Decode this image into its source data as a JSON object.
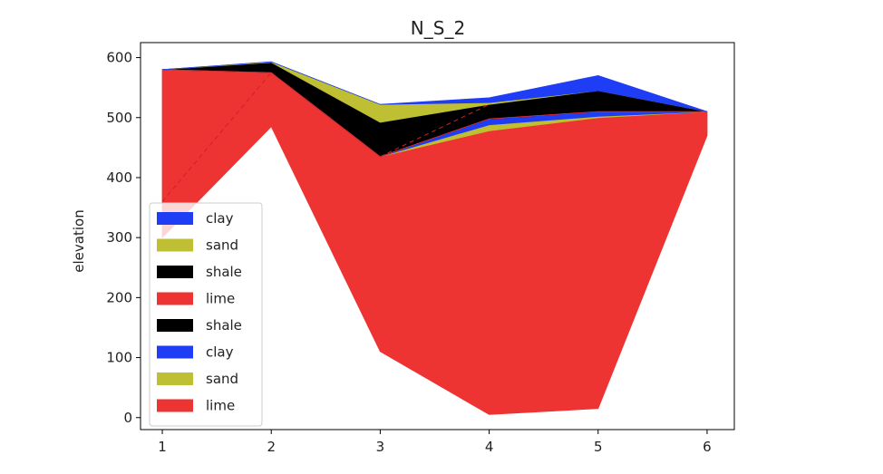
{
  "chart_data": {
    "type": "area",
    "title": "N_S_2",
    "xlabel": "",
    "ylabel": "elevation",
    "x": [
      1,
      2,
      3,
      4,
      5,
      6
    ],
    "xlim": [
      0.8,
      6.25
    ],
    "ylim": [
      -20,
      625
    ],
    "yticks": [
      0,
      100,
      200,
      300,
      400,
      500,
      600
    ],
    "xticks": [
      1,
      2,
      3,
      4,
      5,
      6
    ],
    "grid": false,
    "legend_position": "lower-left",
    "layers": [
      {
        "name": "lime",
        "color": "#ee3333",
        "bottom": [
          300,
          485,
          110,
          5,
          15,
          470
        ],
        "top": [
          580,
          575,
          435,
          478,
          500,
          510
        ]
      },
      {
        "name": "sand",
        "color": "#bfbf33",
        "bottom": [
          580,
          575,
          435,
          478,
          500,
          510
        ],
        "top": [
          580,
          575,
          435,
          488,
          502,
          510
        ]
      },
      {
        "name": "clay",
        "color": "#1f3df5",
        "bottom": [
          580,
          575,
          435,
          488,
          502,
          510
        ],
        "top": [
          580,
          575,
          435,
          498,
          510,
          510
        ]
      },
      {
        "name": "shale",
        "color": "#000000",
        "bottom": [
          580,
          575,
          435,
          498,
          510,
          510
        ],
        "top": [
          580,
          590,
          492,
          522,
          545,
          510
        ]
      },
      {
        "name": "lime",
        "color": "#ee3333",
        "bottom": [
          580,
          575,
          435,
          498,
          510,
          510
        ],
        "top": [
          580,
          575,
          435,
          498,
          510,
          510
        ]
      },
      {
        "name": "shale",
        "color": "#000000",
        "bottom": [
          580,
          590,
          492,
          522,
          545,
          510
        ],
        "top": [
          580,
          592,
          492,
          522,
          545,
          510
        ]
      },
      {
        "name": "sand",
        "color": "#bfbf33",
        "bottom": [
          580,
          592,
          492,
          522,
          545,
          510
        ],
        "top": [
          580,
          593,
          522,
          525,
          545,
          510
        ]
      },
      {
        "name": "clay",
        "color": "#1f3df5",
        "bottom": [
          580,
          593,
          522,
          525,
          545,
          510
        ],
        "top": [
          580,
          593,
          522,
          533,
          570,
          510
        ]
      }
    ],
    "legend": [
      {
        "label": "clay",
        "color": "#1f3df5"
      },
      {
        "label": "sand",
        "color": "#bfbf33"
      },
      {
        "label": "shale",
        "color": "#000000"
      },
      {
        "label": "lime",
        "color": "#ee3333"
      },
      {
        "label": "shale",
        "color": "#000000"
      },
      {
        "label": "clay",
        "color": "#1f3df5"
      },
      {
        "label": "sand",
        "color": "#bfbf33"
      },
      {
        "label": "lime",
        "color": "#ee3333"
      }
    ],
    "dashed_lines": [
      {
        "color": "#cc2222",
        "x": [
          1,
          2
        ],
        "y": [
          360,
          575
        ]
      },
      {
        "color": "#cc2222",
        "x": [
          3,
          4
        ],
        "y": [
          435,
          522
        ]
      }
    ]
  }
}
